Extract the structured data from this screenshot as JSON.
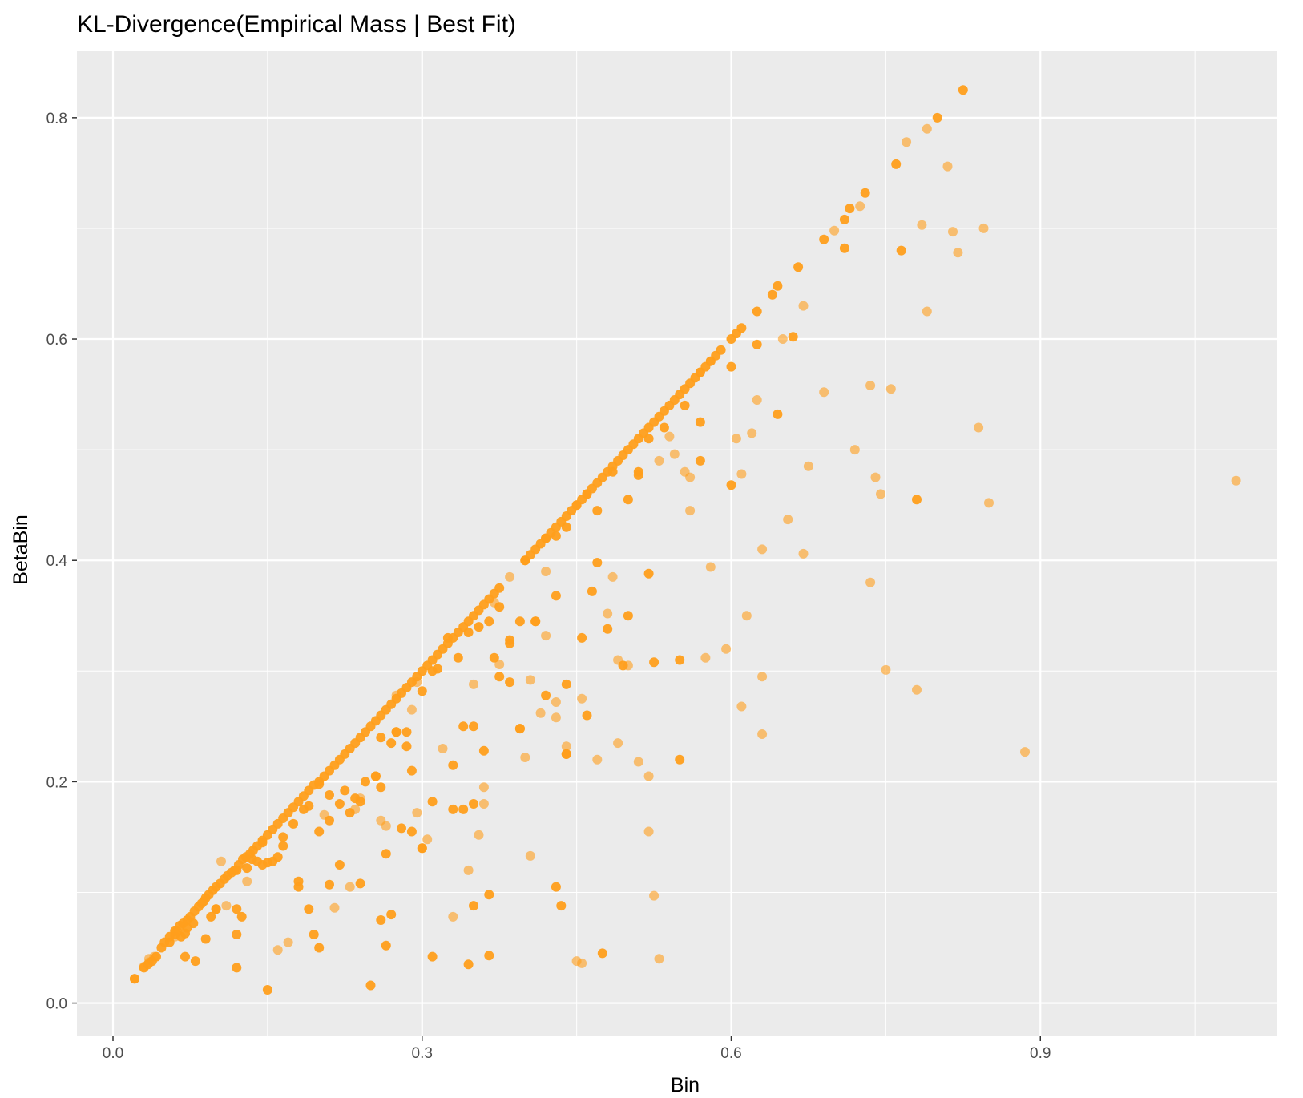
{
  "chart_data": {
    "type": "scatter",
    "title": "KL-Divergence(Empirical Mass | Best Fit)",
    "xlabel": "Bin",
    "ylabel": "BetaBin",
    "xlim": [
      -0.035,
      1.13
    ],
    "ylim": [
      -0.03,
      0.86
    ],
    "x_ticks": [
      0.0,
      0.3,
      0.6,
      0.9
    ],
    "x_tick_labels": [
      "0.0",
      "0.3",
      "0.6",
      "0.9"
    ],
    "y_ticks": [
      0.0,
      0.2,
      0.4,
      0.6,
      0.8
    ],
    "y_tick_labels": [
      "0.0",
      "0.2",
      "0.4",
      "0.6",
      "0.8"
    ],
    "grid": true,
    "legend": "none",
    "colors": {
      "point": "#ff9f1c",
      "panel": "#ebebeb",
      "grid": "#ffffff",
      "tick_text": "#4d4d4d"
    },
    "series": [
      {
        "x": [
          0.021,
          0.021,
          0.03,
          0.034,
          0.038,
          0.042,
          0.047,
          0.05,
          0.055,
          0.06,
          0.062,
          0.065,
          0.068,
          0.072,
          0.075,
          0.079,
          0.083,
          0.086,
          0.09,
          0.093,
          0.097,
          0.1,
          0.104,
          0.108,
          0.111,
          0.115,
          0.118,
          0.122,
          0.126,
          0.129,
          0.133,
          0.136,
          0.14,
          0.145,
          0.15,
          0.155,
          0.16,
          0.165,
          0.17,
          0.175,
          0.18,
          0.185,
          0.19,
          0.195,
          0.2,
          0.205,
          0.21,
          0.215,
          0.22,
          0.225,
          0.23,
          0.235,
          0.24,
          0.245,
          0.25,
          0.255,
          0.26,
          0.265,
          0.27,
          0.275,
          0.28,
          0.285,
          0.29,
          0.295,
          0.3,
          0.305,
          0.31,
          0.315,
          0.32,
          0.325,
          0.33,
          0.335,
          0.34,
          0.345,
          0.35,
          0.355,
          0.36,
          0.365,
          0.37,
          0.375,
          0.4,
          0.405,
          0.41,
          0.415,
          0.42,
          0.425,
          0.43,
          0.435,
          0.44,
          0.445,
          0.45,
          0.455,
          0.46,
          0.465,
          0.47,
          0.475,
          0.48,
          0.485,
          0.49,
          0.495,
          0.5,
          0.505,
          0.51,
          0.515,
          0.52,
          0.525,
          0.53,
          0.535,
          0.54,
          0.545,
          0.55,
          0.555,
          0.56,
          0.565,
          0.57,
          0.575,
          0.58,
          0.585,
          0.59,
          0.6,
          0.605,
          0.61,
          0.625,
          0.64,
          0.645,
          0.665,
          0.69,
          0.71,
          0.715,
          0.73,
          0.76,
          0.8,
          0.825,
          0.06,
          0.066,
          0.072,
          0.078,
          0.088,
          0.1,
          0.12,
          0.13,
          0.135,
          0.145,
          0.155,
          0.165,
          0.175,
          0.185,
          0.19,
          0.2,
          0.21,
          0.22,
          0.225,
          0.235,
          0.245,
          0.255,
          0.26,
          0.27,
          0.275,
          0.285,
          0.29,
          0.3,
          0.31,
          0.325,
          0.335,
          0.345,
          0.355,
          0.365,
          0.375,
          0.385,
          0.395,
          0.41,
          0.42,
          0.43,
          0.44,
          0.45,
          0.46,
          0.47,
          0.485,
          0.5,
          0.51,
          0.52,
          0.535,
          0.555,
          0.57,
          0.6,
          0.625,
          0.645,
          0.66,
          0.71,
          0.765,
          0.78,
          0.08,
          0.095,
          0.125,
          0.15,
          0.165,
          0.18,
          0.2,
          0.22,
          0.24,
          0.255,
          0.265,
          0.275,
          0.285,
          0.3,
          0.315,
          0.33,
          0.34,
          0.35,
          0.36,
          0.375,
          0.385,
          0.395,
          0.4,
          0.41,
          0.43,
          0.44,
          0.455,
          0.465,
          0.48,
          0.495,
          0.51,
          0.525,
          0.55,
          0.055,
          0.1,
          0.12,
          0.14,
          0.16,
          0.19,
          0.21,
          0.23,
          0.26,
          0.28,
          0.29,
          0.31,
          0.33,
          0.35,
          0.37,
          0.385,
          0.395,
          0.42,
          0.44,
          0.47,
          0.5,
          0.52,
          0.55,
          0.57,
          0.6,
          0.07,
          0.09,
          0.12,
          0.145,
          0.18,
          0.21,
          0.24,
          0.27,
          0.3,
          0.34,
          0.365,
          0.44,
          0.46,
          0.07,
          0.12,
          0.195,
          0.265,
          0.31,
          0.345,
          0.435,
          0.475,
          0.15,
          0.25,
          0.365,
          0.2,
          0.26,
          0.35,
          0.43
        ],
        "y": [
          0.022,
          0.022,
          0.032,
          0.035,
          0.038,
          0.042,
          0.05,
          0.055,
          0.06,
          0.065,
          0.065,
          0.07,
          0.072,
          0.075,
          0.078,
          0.083,
          0.087,
          0.09,
          0.095,
          0.098,
          0.102,
          0.105,
          0.108,
          0.112,
          0.115,
          0.118,
          0.12,
          0.125,
          0.13,
          0.132,
          0.135,
          0.138,
          0.142,
          0.147,
          0.152,
          0.157,
          0.162,
          0.167,
          0.172,
          0.177,
          0.182,
          0.187,
          0.192,
          0.197,
          0.2,
          0.205,
          0.21,
          0.215,
          0.22,
          0.225,
          0.23,
          0.235,
          0.24,
          0.245,
          0.25,
          0.255,
          0.26,
          0.265,
          0.27,
          0.275,
          0.28,
          0.285,
          0.29,
          0.295,
          0.3,
          0.305,
          0.31,
          0.315,
          0.32,
          0.325,
          0.33,
          0.335,
          0.34,
          0.345,
          0.35,
          0.355,
          0.36,
          0.365,
          0.37,
          0.375,
          0.4,
          0.405,
          0.41,
          0.415,
          0.42,
          0.425,
          0.43,
          0.435,
          0.44,
          0.445,
          0.45,
          0.455,
          0.46,
          0.465,
          0.47,
          0.475,
          0.48,
          0.485,
          0.49,
          0.495,
          0.5,
          0.505,
          0.51,
          0.515,
          0.52,
          0.525,
          0.53,
          0.535,
          0.54,
          0.545,
          0.55,
          0.555,
          0.56,
          0.565,
          0.57,
          0.575,
          0.58,
          0.585,
          0.59,
          0.6,
          0.605,
          0.61,
          0.625,
          0.64,
          0.648,
          0.665,
          0.69,
          0.708,
          0.718,
          0.732,
          0.758,
          0.8,
          0.825,
          0.062,
          0.06,
          0.068,
          0.072,
          0.092,
          0.085,
          0.12,
          0.122,
          0.13,
          0.145,
          0.128,
          0.15,
          0.162,
          0.175,
          0.178,
          0.198,
          0.188,
          0.18,
          0.192,
          0.185,
          0.2,
          0.205,
          0.24,
          0.235,
          0.245,
          0.245,
          0.21,
          0.282,
          0.3,
          0.33,
          0.312,
          0.335,
          0.34,
          0.345,
          0.358,
          0.325,
          0.345,
          0.345,
          0.42,
          0.422,
          0.43,
          0.45,
          0.46,
          0.445,
          0.48,
          0.455,
          0.48,
          0.51,
          0.52,
          0.54,
          0.525,
          0.575,
          0.595,
          0.532,
          0.602,
          0.682,
          0.68,
          0.455,
          0.038,
          0.078,
          0.078,
          0.127,
          0.142,
          0.105,
          0.155,
          0.125,
          0.182,
          0.205,
          0.135,
          0.245,
          0.232,
          0.14,
          0.302,
          0.215,
          0.175,
          0.25,
          0.228,
          0.295,
          0.328,
          0.248,
          0.4,
          0.345,
          0.368,
          0.288,
          0.33,
          0.372,
          0.338,
          0.305,
          0.477,
          0.308,
          0.31,
          0.055,
          0.085,
          0.085,
          0.128,
          0.132,
          0.085,
          0.107,
          0.172,
          0.195,
          0.158,
          0.155,
          0.182,
          0.175,
          0.088,
          0.312,
          0.29,
          0.248,
          0.278,
          0.225,
          0.398,
          0.35,
          0.388,
          0.22,
          0.49,
          0.468,
          0.063,
          0.058,
          0.062,
          0.125,
          0.11,
          0.165,
          0.108,
          0.08,
          0.14,
          0.25,
          0.098,
          0.225,
          0.26,
          0.042,
          0.032,
          0.062,
          0.052,
          0.042,
          0.035,
          0.088,
          0.045,
          0.012,
          0.016,
          0.043,
          0.05,
          0.075,
          0.18,
          0.105
        ],
        "opacity": 0.95
      },
      {
        "x": [
          0.03,
          0.035,
          0.04,
          0.06,
          0.11,
          0.13,
          0.17,
          0.215,
          0.235,
          0.26,
          0.275,
          0.29,
          0.295,
          0.305,
          0.33,
          0.35,
          0.355,
          0.36,
          0.37,
          0.375,
          0.4,
          0.405,
          0.415,
          0.42,
          0.43,
          0.44,
          0.45,
          0.455,
          0.48,
          0.49,
          0.5,
          0.51,
          0.52,
          0.525,
          0.53,
          0.54,
          0.545,
          0.555,
          0.56,
          0.57,
          0.575,
          0.58,
          0.595,
          0.605,
          0.61,
          0.615,
          0.62,
          0.625,
          0.63,
          0.655,
          0.67,
          0.675,
          0.69,
          0.7,
          0.72,
          0.725,
          0.735,
          0.74,
          0.745,
          0.75,
          0.77,
          0.78,
          0.785,
          0.79,
          0.81,
          0.815,
          0.82,
          0.84,
          0.845,
          0.85,
          0.885,
          1.09,
          0.035,
          0.105,
          0.16,
          0.205,
          0.23,
          0.24,
          0.265,
          0.295,
          0.32,
          0.345,
          0.36,
          0.385,
          0.405,
          0.42,
          0.43,
          0.44,
          0.455,
          0.47,
          0.485,
          0.49,
          0.52,
          0.53,
          0.56,
          0.58,
          0.61,
          0.63,
          0.65,
          0.63,
          0.735,
          0.79,
          0.755,
          0.67
        ],
        "y": [
          0.033,
          0.037,
          0.042,
          0.06,
          0.088,
          0.11,
          0.055,
          0.086,
          0.175,
          0.165,
          0.278,
          0.265,
          0.172,
          0.148,
          0.078,
          0.288,
          0.152,
          0.195,
          0.362,
          0.306,
          0.222,
          0.133,
          0.262,
          0.39,
          0.258,
          0.232,
          0.038,
          0.036,
          0.352,
          0.235,
          0.305,
          0.218,
          0.205,
          0.097,
          0.04,
          0.512,
          0.496,
          0.48,
          0.445,
          0.57,
          0.312,
          0.394,
          0.32,
          0.51,
          0.268,
          0.35,
          0.515,
          0.545,
          0.243,
          0.437,
          0.406,
          0.485,
          0.552,
          0.698,
          0.5,
          0.72,
          0.38,
          0.475,
          0.46,
          0.301,
          0.778,
          0.283,
          0.703,
          0.79,
          0.756,
          0.697,
          0.678,
          0.52,
          0.7,
          0.452,
          0.227,
          0.472,
          0.04,
          0.128,
          0.048,
          0.17,
          0.105,
          0.185,
          0.16,
          0.29,
          0.23,
          0.12,
          0.18,
          0.385,
          0.292,
          0.332,
          0.272,
          0.225,
          0.275,
          0.22,
          0.385,
          0.31,
          0.155,
          0.49,
          0.475,
          0.58,
          0.478,
          0.41,
          0.6,
          0.295,
          0.558,
          0.625,
          0.555,
          0.63
        ],
        "opacity": 0.6
      }
    ]
  }
}
